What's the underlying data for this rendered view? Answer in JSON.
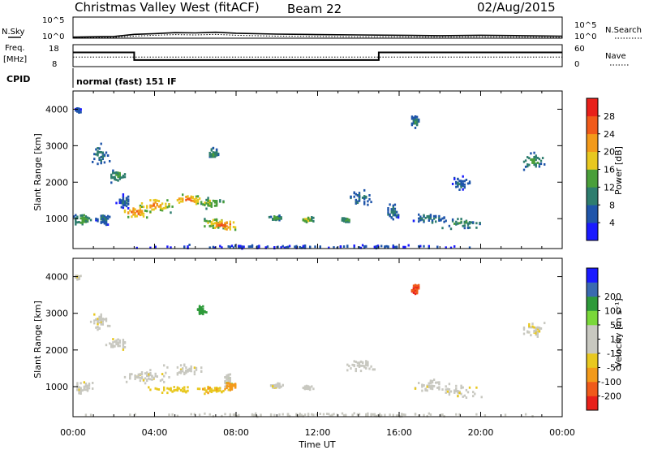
{
  "header": {
    "station_title": "Christmas Valley West (fitACF)",
    "beam_label": "Beam 22",
    "date": "02/Aug/2015"
  },
  "side_labels": {
    "nsky": "N.Sky",
    "nsearch": "N.Search",
    "freq_line1": "Freq.",
    "freq_line2": "[MHz]",
    "nave": "Nave",
    "cpid": "CPID",
    "cpid_value": "normal (fast) 151 IF"
  },
  "noise_axis": {
    "left_ticks": [
      "10^5",
      "10^0"
    ],
    "right_ticks": [
      "10^5",
      "10^0"
    ]
  },
  "freq_axis": {
    "left_ticks": [
      "18",
      "8"
    ],
    "right_ticks": [
      "60",
      "0"
    ]
  },
  "colors": {
    "power": [
      "#1a1aff",
      "#1f55aa",
      "#2e7d6e",
      "#4a9f3a",
      "#e8c820",
      "#f39a1a",
      "#f05a1a",
      "#e8201a"
    ],
    "velocity": [
      "#e8201a",
      "#f05a1a",
      "#f39a1a",
      "#e8c820",
      "#c8c8c0",
      "#c8c8c0",
      "#7ad83a",
      "#2e9a3a",
      "#3a6ab0",
      "#1a1aff"
    ],
    "ground_scatter": "#aaaaaa"
  },
  "chart_data": [
    {
      "type": "line",
      "name": "noise",
      "ylabel": "N.Sky",
      "y_right_label": "N.Search",
      "y_scale": "log",
      "ylim": [
        1,
        100000
      ],
      "x": [
        "00:00",
        "02:00",
        "03:00",
        "04:00",
        "05:00",
        "06:00",
        "07:00",
        "08:00",
        "10:00",
        "12:00",
        "14:00",
        "16:00",
        "18:00",
        "20:00",
        "22:00",
        "24:00"
      ],
      "series": [
        {
          "name": "N.Sky",
          "values": [
            1.8,
            2.5,
            8,
            12,
            20,
            18,
            25,
            15,
            9,
            7,
            6,
            5,
            4,
            5,
            4,
            3
          ]
        },
        {
          "name": "N.Search",
          "values": [
            1.2,
            1.5,
            3,
            5,
            7,
            6,
            8,
            5,
            3,
            2.5,
            2,
            2,
            1.8,
            2,
            1.8,
            1.5
          ]
        }
      ]
    },
    {
      "type": "line",
      "name": "frequency",
      "ylabel": "Freq. [MHz]",
      "y_right_label": "Nave",
      "ylim": [
        8,
        18
      ],
      "y_right_lim": [
        0,
        60
      ],
      "x": [
        "00:00",
        "03:00",
        "03:00",
        "15:00",
        "15:00",
        "24:00"
      ],
      "series": [
        {
          "name": "Freq.",
          "values": [
            14.5,
            14.5,
            11,
            11,
            14.5,
            14.5
          ]
        },
        {
          "name": "Nave",
          "values": [
            26,
            26,
            26,
            26,
            26,
            26
          ]
        }
      ]
    },
    {
      "type": "heatmap",
      "name": "power",
      "xlabel": "",
      "ylabel": "Slant Range [km]",
      "colorbar_label": "Power [dB]",
      "colorbar_ticks": [
        4,
        8,
        12,
        16,
        20,
        24,
        28
      ],
      "xlim": [
        0,
        24
      ],
      "ylim": [
        180,
        4500
      ],
      "y_ticks": [
        1000,
        2000,
        3000,
        4000
      ],
      "blobs": [
        {
          "t": 0.25,
          "r": 4000,
          "dt": 0.15,
          "dr": 80,
          "p": 8
        },
        {
          "t": 0.5,
          "r": 1000,
          "dt": 0.6,
          "dr": 200,
          "p": 16
        },
        {
          "t": 1.5,
          "r": 1000,
          "dt": 0.4,
          "dr": 180,
          "p": 10
        },
        {
          "t": 1.3,
          "r": 2800,
          "dt": 0.6,
          "dr": 350,
          "p": 10
        },
        {
          "t": 2.2,
          "r": 2200,
          "dt": 0.6,
          "dr": 220,
          "p": 14
        },
        {
          "t": 2.5,
          "r": 1500,
          "dt": 0.4,
          "dr": 250,
          "p": 8
        },
        {
          "t": 3.1,
          "r": 1200,
          "dt": 0.9,
          "dr": 220,
          "p": 26
        },
        {
          "t": 4.0,
          "r": 1400,
          "dt": 1.2,
          "dr": 250,
          "p": 24
        },
        {
          "t": 5.6,
          "r": 1550,
          "dt": 1.0,
          "dr": 180,
          "p": 26
        },
        {
          "t": 6.7,
          "r": 1450,
          "dt": 0.9,
          "dr": 220,
          "p": 18
        },
        {
          "t": 6.9,
          "r": 900,
          "dt": 0.9,
          "dr": 200,
          "p": 20
        },
        {
          "t": 7.4,
          "r": 850,
          "dt": 0.9,
          "dr": 180,
          "p": 28
        },
        {
          "t": 6.9,
          "r": 2800,
          "dt": 0.3,
          "dr": 200,
          "p": 14
        },
        {
          "t": 10.0,
          "r": 1050,
          "dt": 0.4,
          "dr": 80,
          "p": 16
        },
        {
          "t": 11.5,
          "r": 1000,
          "dt": 0.4,
          "dr": 80,
          "p": 20
        },
        {
          "t": 13.4,
          "r": 1000,
          "dt": 0.3,
          "dr": 70,
          "p": 16
        },
        {
          "t": 14.1,
          "r": 1600,
          "dt": 0.9,
          "dr": 250,
          "p": 10
        },
        {
          "t": 15.7,
          "r": 1200,
          "dt": 0.4,
          "dr": 300,
          "p": 10
        },
        {
          "t": 16.8,
          "r": 3700,
          "dt": 0.25,
          "dr": 200,
          "p": 12
        },
        {
          "t": 17.5,
          "r": 1050,
          "dt": 1.2,
          "dr": 220,
          "p": 10
        },
        {
          "t": 19.0,
          "r": 900,
          "dt": 1.2,
          "dr": 200,
          "p": 14
        },
        {
          "t": 19.0,
          "r": 2000,
          "dt": 0.6,
          "dr": 280,
          "p": 8
        },
        {
          "t": 22.6,
          "r": 2600,
          "dt": 0.7,
          "dr": 300,
          "p": 14
        },
        {
          "t": 12.0,
          "r": 260,
          "dt": 12.0,
          "dr": 60,
          "p": 6
        }
      ]
    },
    {
      "type": "heatmap",
      "name": "velocity",
      "xlabel": "Time UT",
      "ylabel": "Slant Range [km]",
      "colorbar_label": "Velocity [m s⁻¹]",
      "colorbar_ticks": [
        -200,
        -100,
        -50,
        -15,
        15,
        50,
        100,
        200
      ],
      "x_tick_labels": [
        "00:00",
        "04:00",
        "08:00",
        "12:00",
        "16:00",
        "20:00",
        "00:00"
      ],
      "xlim": [
        0,
        24
      ],
      "ylim": [
        180,
        4500
      ],
      "y_ticks": [
        1000,
        2000,
        3000,
        4000
      ],
      "blobs": [
        {
          "t": 0.25,
          "r": 4000,
          "dt": 0.15,
          "dr": 80,
          "v": 0
        },
        {
          "t": 0.5,
          "r": 1000,
          "dt": 0.6,
          "dr": 200,
          "v": 0
        },
        {
          "t": 1.3,
          "r": 2800,
          "dt": 0.6,
          "dr": 350,
          "v": 0
        },
        {
          "t": 2.2,
          "r": 2200,
          "dt": 0.6,
          "dr": 220,
          "v": 0
        },
        {
          "t": 3.5,
          "r": 1300,
          "dt": 1.5,
          "dr": 250,
          "v": 0
        },
        {
          "t": 5.5,
          "r": 1500,
          "dt": 1.2,
          "dr": 200,
          "v": 0
        },
        {
          "t": 4.8,
          "r": 950,
          "dt": 1.5,
          "dr": 120,
          "v": -30
        },
        {
          "t": 6.8,
          "r": 950,
          "dt": 1.0,
          "dr": 150,
          "v": -40
        },
        {
          "t": 7.6,
          "r": 1200,
          "dt": 0.3,
          "dr": 300,
          "v": 40
        },
        {
          "t": 7.8,
          "r": 1050,
          "dt": 0.3,
          "dr": 150,
          "v": -80
        },
        {
          "t": 6.3,
          "r": 3100,
          "dt": 0.3,
          "dr": 150,
          "v": 150
        },
        {
          "t": 10.0,
          "r": 1050,
          "dt": 0.4,
          "dr": 80,
          "v": 0
        },
        {
          "t": 11.5,
          "r": 1000,
          "dt": 0.4,
          "dr": 80,
          "v": 0
        },
        {
          "t": 14.1,
          "r": 1600,
          "dt": 0.9,
          "dr": 250,
          "v": 0
        },
        {
          "t": 16.8,
          "r": 3700,
          "dt": 0.25,
          "dr": 200,
          "v": -200
        },
        {
          "t": 17.5,
          "r": 1050,
          "dt": 1.2,
          "dr": 220,
          "v": 0
        },
        {
          "t": 19.0,
          "r": 900,
          "dt": 1.2,
          "dr": 200,
          "v": 0
        },
        {
          "t": 22.6,
          "r": 2600,
          "dt": 0.7,
          "dr": 300,
          "v": 0
        },
        {
          "t": 12.0,
          "r": 260,
          "dt": 12.0,
          "dr": 60,
          "v": 25
        }
      ]
    }
  ]
}
